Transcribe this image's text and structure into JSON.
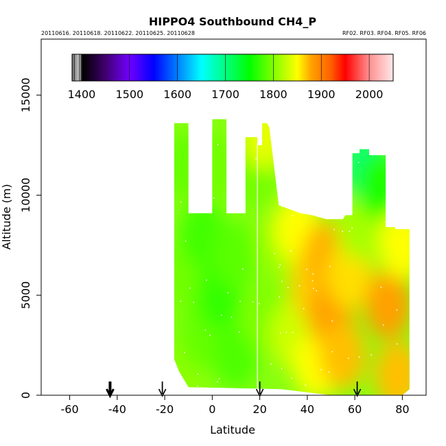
{
  "chart_data": {
    "type": "heatmap",
    "title": "HIPPO4 Southbound CH4_P",
    "subtitle_left": "20110616. 20110618. 20110622. 20110625. 20110628",
    "subtitle_right": "RF02. RF03. RF04. RF05. RF06",
    "xlabel": "Latitude",
    "ylabel": "Altitude (m)",
    "xlim": [
      -72,
      90
    ],
    "ylim": [
      0,
      17800
    ],
    "xticks": [
      -60,
      -40,
      -20,
      0,
      20,
      40,
      60,
      80
    ],
    "yticks": [
      0,
      5000,
      10000,
      15000
    ],
    "colorbar": {
      "range": [
        1380,
        2050
      ],
      "tick_values": [
        1400,
        1500,
        1600,
        1700,
        1800,
        1900,
        2000
      ],
      "colors": [
        {
          "v": 1380,
          "c": "#666666"
        },
        {
          "v": 1395,
          "c": "#c8c8c8"
        },
        {
          "v": 1402,
          "c": "#000000"
        },
        {
          "v": 1450,
          "c": "#400070"
        },
        {
          "v": 1500,
          "c": "#7000ff"
        },
        {
          "v": 1550,
          "c": "#0000ff"
        },
        {
          "v": 1600,
          "c": "#0080ff"
        },
        {
          "v": 1650,
          "c": "#00ffff"
        },
        {
          "v": 1700,
          "c": "#00ff80"
        },
        {
          "v": 1750,
          "c": "#00ff00"
        },
        {
          "v": 1800,
          "c": "#80ff00"
        },
        {
          "v": 1850,
          "c": "#ffff00"
        },
        {
          "v": 1880,
          "c": "#ffa000"
        },
        {
          "v": 1920,
          "c": "#ff6000"
        },
        {
          "v": 1950,
          "c": "#ff0000"
        },
        {
          "v": 2000,
          "c": "#ff9090"
        },
        {
          "v": 2050,
          "c": "#ffe8e8"
        }
      ]
    },
    "profiles": [
      {
        "lat": -10,
        "top": 13600
      },
      {
        "lat": 4,
        "top": 13800
      },
      {
        "lat": 16,
        "top": 12800
      },
      {
        "lat": 28,
        "top": 9500
      },
      {
        "lat": 62,
        "top": 12300
      },
      {
        "lat": 82,
        "top": 8300
      }
    ],
    "data_region": {
      "outline_lat": [
        -16,
        -16,
        -10,
        -10,
        -8,
        -8,
        0,
        0,
        6,
        6,
        14,
        14,
        19,
        19,
        21,
        21,
        23,
        24,
        28,
        37,
        42,
        48,
        55,
        56,
        59,
        59,
        62,
        62,
        66,
        66,
        73,
        73,
        77,
        77,
        83,
        83,
        80,
        58,
        50,
        29,
        -10,
        -14,
        -16
      ],
      "outline_alt": [
        1800,
        13600,
        13600,
        9100,
        9100,
        9100,
        9100,
        13800,
        13800,
        9100,
        9100,
        12900,
        12900,
        12500,
        12500,
        13600,
        13600,
        13400,
        9500,
        9100,
        9000,
        8800,
        8800,
        9000,
        9000,
        12100,
        12100,
        12300,
        12300,
        12000,
        12000,
        8400,
        8400,
        8300,
        8300,
        300,
        0,
        0,
        0,
        300,
        400,
        1200,
        1800
      ],
      "cells": [
        {
          "lat": -14,
          "alt": 1000,
          "v": 1805
        },
        {
          "lat": -12,
          "alt": 6000,
          "v": 1795
        },
        {
          "lat": -12,
          "alt": 11500,
          "v": 1790
        },
        {
          "lat": -4,
          "alt": 3000,
          "v": 1790
        },
        {
          "lat": -4,
          "alt": 8000,
          "v": 1775
        },
        {
          "lat": 3,
          "alt": 11500,
          "v": 1795
        },
        {
          "lat": 3,
          "alt": 5000,
          "v": 1770
        },
        {
          "lat": 10,
          "alt": 2000,
          "v": 1780
        },
        {
          "lat": 10,
          "alt": 7000,
          "v": 1785
        },
        {
          "lat": 17,
          "alt": 11000,
          "v": 1795
        },
        {
          "lat": 22,
          "alt": 13000,
          "v": 1840
        },
        {
          "lat": 22,
          "alt": 4000,
          "v": 1800
        },
        {
          "lat": 28,
          "alt": 7500,
          "v": 1810
        },
        {
          "lat": 34,
          "alt": 3000,
          "v": 1830
        },
        {
          "lat": 36,
          "alt": 8300,
          "v": 1850
        },
        {
          "lat": 42,
          "alt": 5500,
          "v": 1865
        },
        {
          "lat": 44,
          "alt": 1500,
          "v": 1850
        },
        {
          "lat": 48,
          "alt": 7000,
          "v": 1875
        },
        {
          "lat": 50,
          "alt": 4000,
          "v": 1880
        },
        {
          "lat": 55,
          "alt": 2000,
          "v": 1870
        },
        {
          "lat": 58,
          "alt": 6000,
          "v": 1860
        },
        {
          "lat": 62,
          "alt": 8500,
          "v": 1815
        },
        {
          "lat": 65,
          "alt": 11300,
          "v": 1700
        },
        {
          "lat": 70,
          "alt": 10500,
          "v": 1760
        },
        {
          "lat": 74,
          "alt": 4500,
          "v": 1880
        },
        {
          "lat": 78,
          "alt": 1000,
          "v": 1870
        },
        {
          "lat": 80,
          "alt": 7500,
          "v": 1850
        }
      ]
    },
    "markers_lat": [
      -43,
      -21,
      20,
      61
    ],
    "markers_bold": [
      true,
      false,
      false,
      false
    ]
  }
}
